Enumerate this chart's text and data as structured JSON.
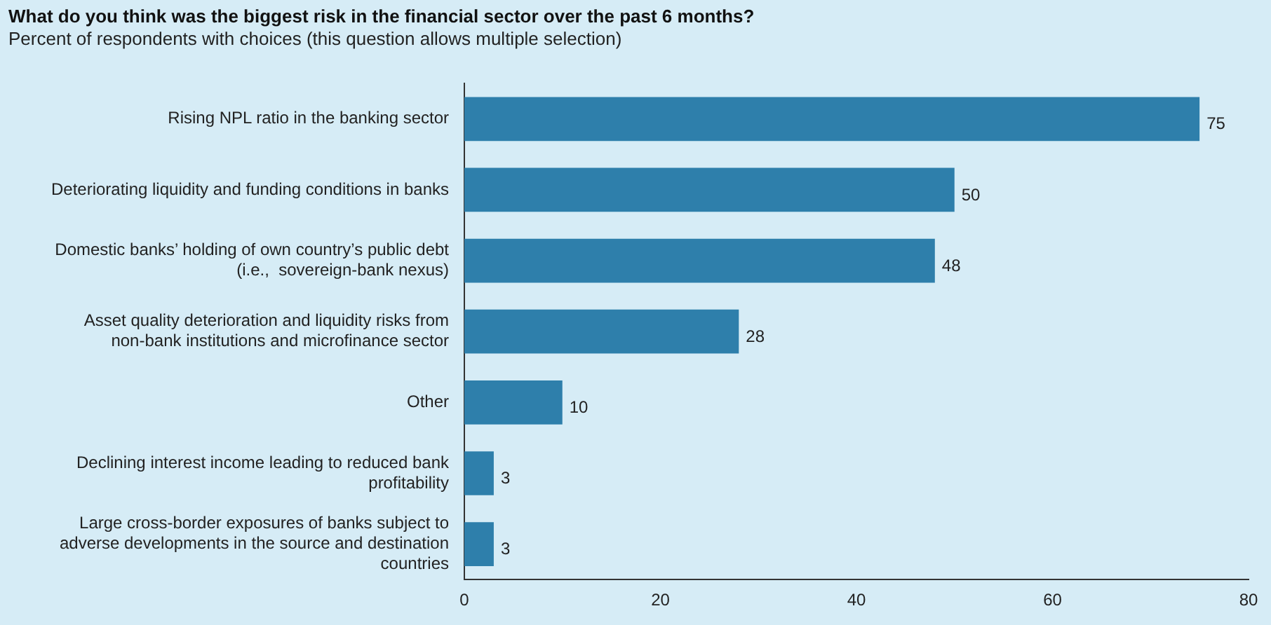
{
  "chart_data": {
    "type": "bar",
    "orientation": "horizontal",
    "title": "What do you think was the biggest risk in the financial sector over the past 6 months?",
    "subtitle": "Percent of respondents with choices (this question allows multiple selection)",
    "categories": [
      "Rising NPL ratio in the banking sector",
      "Deteriorating liquidity and funding conditions in banks",
      "Domestic banks’ holding of own country’s public debt (i.e.,  sovereign-bank nexus)",
      "Asset quality deterioration and liquidity risks from non-bank institutions and microfinance sector",
      "Other",
      "Declining interest income leading to reduced bank profitability",
      "Large cross-border exposures of banks subject to adverse developments in the source and destination countries"
    ],
    "values": [
      75,
      50,
      48,
      28,
      10,
      3,
      3
    ],
    "color": "#2e7fab",
    "xlim": [
      0,
      80
    ],
    "xticks": [
      0,
      20,
      40,
      60,
      80
    ],
    "grid": false,
    "legend": false,
    "data_labels": true
  }
}
